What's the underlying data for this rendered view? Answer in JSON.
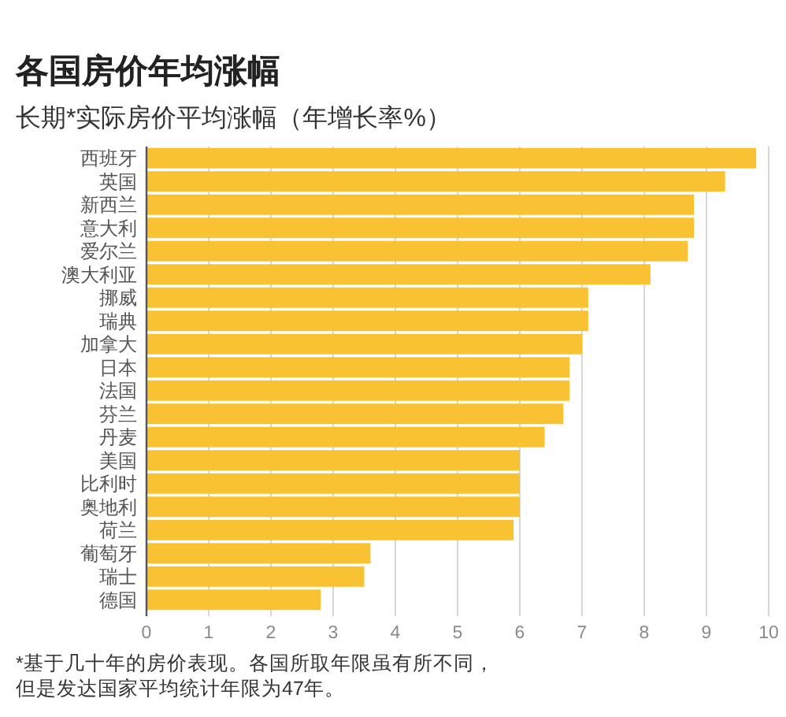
{
  "chart_data": {
    "type": "bar",
    "orientation": "horizontal",
    "title": "各国房价年均涨幅",
    "subtitle": "长期*实际房价平均涨幅（年增长率%）",
    "categories": [
      "西班牙",
      "英国",
      "新西兰",
      "意大利",
      "爱尔兰",
      "澳大利亚",
      "挪威",
      "瑞典",
      "加拿大",
      "日本",
      "法国",
      "芬兰",
      "丹麦",
      "美国",
      "比利时",
      "奥地利",
      "荷兰",
      "葡萄牙",
      "瑞士",
      "德国"
    ],
    "values": [
      9.8,
      9.3,
      8.8,
      8.8,
      8.7,
      8.1,
      7.1,
      7.1,
      7.0,
      6.8,
      6.8,
      6.7,
      6.4,
      6.0,
      6.0,
      6.0,
      5.9,
      3.6,
      3.5,
      2.8
    ],
    "color": "#f8c232",
    "xlim": [
      0,
      10
    ],
    "xticks": [
      0,
      1,
      2,
      3,
      4,
      5,
      6,
      7,
      8,
      9,
      10
    ],
    "grid": "x",
    "annotations": [
      "*基于几十年的房价表现。各国所取年限虽有所不同，但是发达国家平均统计年限为47年。"
    ]
  }
}
